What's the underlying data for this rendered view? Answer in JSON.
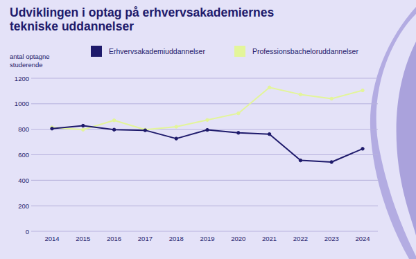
{
  "chart_data": {
    "type": "line",
    "title": "Udviklingen i optag på erhvervsakademiernes tekniske uddannelser",
    "y_label": "antal optagne studerende",
    "categories": [
      "2014",
      "2015",
      "2016",
      "2017",
      "2018",
      "2019",
      "2020",
      "2021",
      "2022",
      "2023",
      "2024"
    ],
    "series": [
      {
        "name": "Erhvervsakademiuddannelser",
        "color": "#1e1a6b",
        "marker": "circle",
        "values": [
          805,
          828,
          797,
          792,
          727,
          795,
          772,
          762,
          556,
          543,
          647
        ]
      },
      {
        "name": "Professionsbacheloruddannelser",
        "color": "#e3f59a",
        "marker": "circle",
        "values": [
          815,
          797,
          870,
          797,
          820,
          873,
          925,
          1128,
          1073,
          1040,
          1105
        ]
      }
    ],
    "ylim": [
      0,
      1200
    ],
    "yticks": [
      0,
      200,
      400,
      600,
      800,
      1000,
      1200
    ],
    "grid": true,
    "legend": "top"
  }
}
